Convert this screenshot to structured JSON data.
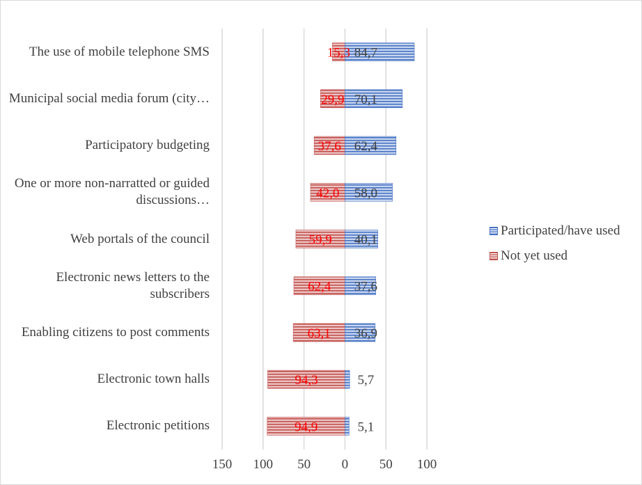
{
  "chart_data": {
    "type": "bar",
    "orientation": "horizontal",
    "diverging": true,
    "categories": [
      "The use of mobile telephone SMS",
      "Municipal social media forum (city…",
      "Participatory budgeting",
      "One or more non-narratted or guided discussions…",
      "Web portals of the council",
      "Electronic news letters to the subscribers",
      "Enabling citizens to post comments",
      "Electronic town halls",
      "Electronic petitions"
    ],
    "series": [
      {
        "name": "Participated/have used",
        "color": "#4472c4",
        "values": [
          84.7,
          70.1,
          62.4,
          58.0,
          40.1,
          37.6,
          36.9,
          5.7,
          5.1
        ],
        "labels": [
          "84,7",
          "70,1",
          "62,4",
          "58,0",
          "40,1",
          "37,6",
          "36,9",
          "5,7",
          "5,1"
        ],
        "label_color": "#404040",
        "side": "right"
      },
      {
        "name": "Not yet used",
        "color": "#c0504d",
        "values": [
          15.3,
          29.9,
          37.6,
          42.0,
          59.9,
          62.4,
          63.1,
          94.3,
          94.9
        ],
        "labels": [
          "15,3",
          "29,9",
          "37,6",
          "42,0",
          "59,9",
          "62,4",
          "63,1",
          "94,3",
          "94,9"
        ],
        "label_color": "#ff0000",
        "side": "left"
      }
    ],
    "xlim": [
      -150,
      100
    ],
    "x_ticks": [
      "150",
      "100",
      "50",
      "0",
      "50",
      "100"
    ],
    "x_tick_values": [
      -150,
      -100,
      -50,
      0,
      50,
      100
    ],
    "grid": true,
    "legend_position": "right",
    "bar_pattern": "horizontal-stripes",
    "title": "",
    "xlabel": "",
    "ylabel": ""
  }
}
